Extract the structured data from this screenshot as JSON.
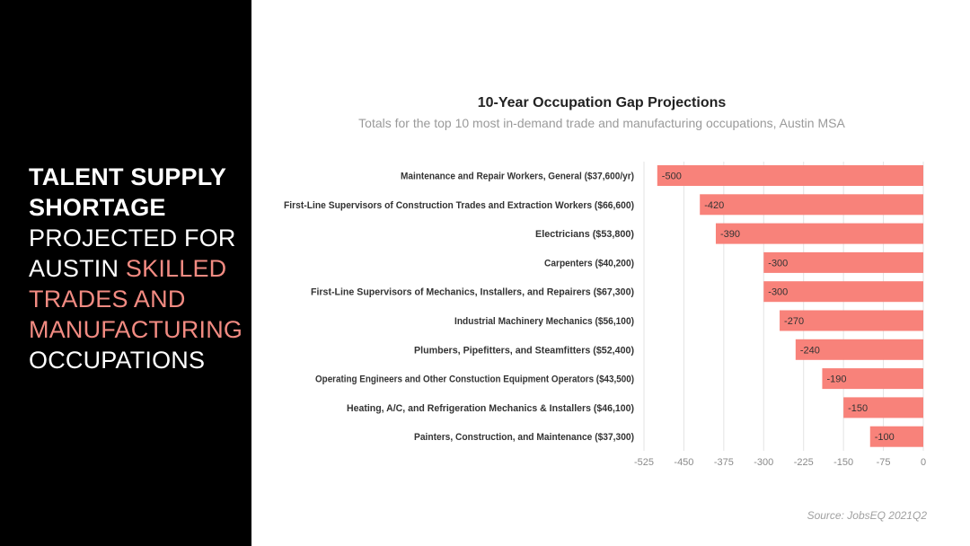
{
  "headline": {
    "line1": "TALENT SUPPLY",
    "line2": "SHORTAGE",
    "line3": "PROJECTED FOR",
    "line4_plain": "AUSTIN ",
    "line4_accent": "SKILLED",
    "line5": "TRADES AND",
    "line6": "MANUFACTURING",
    "line7": "OCCUPATIONS"
  },
  "colors": {
    "accent": "#f28b82",
    "bar": "#f8827a",
    "panel": "#000000"
  },
  "chart_data": {
    "type": "bar",
    "orientation": "horizontal",
    "title": "10-Year Occupation  Gap Projections",
    "subtitle": "Totals for the top 10 most in-demand trade and manufacturing occupations, Austin MSA",
    "categories": [
      "Maintenance and Repair Workers, General ($37,600/yr)",
      "First-Line Supervisors of Construction Trades and Extraction Workers ($66,600)",
      "Electricians ($53,800)",
      "Carpenters ($40,200)",
      "First-Line Supervisors of Mechanics, Installers, and Repairers ($67,300)",
      "Industrial Machinery Mechanics ($56,100)",
      "Plumbers, Pipefitters, and Steamfitters ($52,400)",
      "Operating Engineers and Other Constuction Equipment Operators ($43,500)",
      "Heating, A/C, and Refrigeration Mechanics & Installers ($46,100)",
      "Painters, Construction, and Maintenance ($37,300)"
    ],
    "values": [
      -500,
      -420,
      -390,
      -300,
      -300,
      -270,
      -240,
      -190,
      -150,
      -100
    ],
    "data_labels": [
      "-500",
      "-420",
      "-390",
      "-300",
      "-300",
      "-270",
      "-240",
      "-190",
      "-150",
      "-100"
    ],
    "xlim": [
      -525,
      0
    ],
    "x_ticks": [
      "-525",
      "-450",
      "-375",
      "-300",
      "-225",
      "-150",
      "-75",
      "0"
    ],
    "x_tick_values": [
      -525,
      -450,
      -375,
      -300,
      -225,
      -150,
      -75,
      0
    ],
    "grid": true,
    "legend": "none"
  },
  "source": "Source: JobsEQ 2021Q2"
}
